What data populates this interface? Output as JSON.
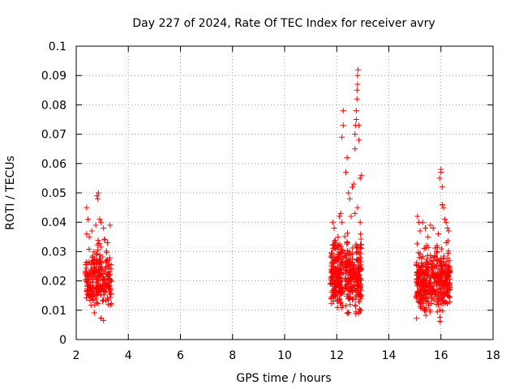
{
  "colors": {
    "series": "#ff0000",
    "grid": "#a0a0a0",
    "axis": "#000000"
  },
  "chart_data": {
    "type": "scatter",
    "title": "Day 227 of 2024, Rate Of TEC Index for receiver avry",
    "xlabel": "GPS time / hours",
    "ylabel": "ROTI / TECUs",
    "xlim": [
      2,
      18
    ],
    "ylim": [
      0,
      0.1
    ],
    "grid": true,
    "legend": "none",
    "marker": "+",
    "xticks": [
      2,
      4,
      6,
      8,
      10,
      12,
      14,
      16,
      18
    ],
    "xtick_labels": [
      "2",
      "4",
      "6",
      "8",
      "10",
      "12",
      "14",
      "16",
      "18"
    ],
    "yticks": [
      0,
      0.01,
      0.02,
      0.03,
      0.04,
      0.05,
      0.06,
      0.07,
      0.08,
      0.09,
      0.1
    ],
    "ytick_labels": [
      "0",
      "0.01",
      "0.02",
      "0.03",
      "0.04",
      "0.05",
      "0.06",
      "0.07",
      "0.08",
      "0.09",
      "0.1"
    ],
    "series": [
      {
        "name": "ROTI",
        "clusters": [
          {
            "x_range": [
              2.35,
              3.35
            ],
            "y_range": [
              0.005,
              0.036
            ],
            "count": 260
          },
          {
            "x_range": [
              11.75,
              12.25
            ],
            "y_range": [
              0.007,
              0.038
            ],
            "count": 200
          },
          {
            "x_range": [
              12.3,
              12.95
            ],
            "y_range": [
              0.005,
              0.04
            ],
            "count": 230
          },
          {
            "x_range": [
              15.05,
              15.75
            ],
            "y_range": [
              0.005,
              0.035
            ],
            "count": 220
          },
          {
            "x_range": [
              15.75,
              16.35
            ],
            "y_range": [
              0.005,
              0.035
            ],
            "count": 200
          }
        ],
        "points": [
          [
            2.4,
            0.045
          ],
          [
            2.45,
            0.041
          ],
          [
            2.4,
            0.036
          ],
          [
            2.5,
            0.035
          ],
          [
            2.6,
            0.037
          ],
          [
            2.75,
            0.039
          ],
          [
            2.8,
            0.049
          ],
          [
            2.85,
            0.05
          ],
          [
            2.82,
            0.048
          ],
          [
            2.9,
            0.041
          ],
          [
            2.95,
            0.04
          ],
          [
            3.05,
            0.038
          ],
          [
            3.2,
            0.033
          ],
          [
            3.3,
            0.039
          ],
          [
            3.1,
            0.034
          ],
          [
            11.85,
            0.04
          ],
          [
            11.9,
            0.038
          ],
          [
            11.95,
            0.033
          ],
          [
            12.05,
            0.035
          ],
          [
            12.1,
            0.042
          ],
          [
            12.15,
            0.043
          ],
          [
            12.2,
            0.04
          ],
          [
            12.2,
            0.069
          ],
          [
            12.25,
            0.073
          ],
          [
            12.25,
            0.078
          ],
          [
            12.35,
            0.057
          ],
          [
            12.4,
            0.062
          ],
          [
            12.45,
            0.05
          ],
          [
            12.5,
            0.048
          ],
          [
            12.55,
            0.042
          ],
          [
            12.6,
            0.052
          ],
          [
            12.65,
            0.053
          ],
          [
            12.7,
            0.065
          ],
          [
            12.7,
            0.07
          ],
          [
            12.72,
            0.073
          ],
          [
            12.75,
            0.075
          ],
          [
            12.75,
            0.078
          ],
          [
            12.78,
            0.082
          ],
          [
            12.78,
            0.085
          ],
          [
            12.8,
            0.087
          ],
          [
            12.8,
            0.09
          ],
          [
            12.82,
            0.092
          ],
          [
            12.85,
            0.068
          ],
          [
            12.85,
            0.073
          ],
          [
            12.9,
            0.055
          ],
          [
            12.95,
            0.056
          ],
          [
            12.7,
            0.043
          ],
          [
            12.8,
            0.045
          ],
          [
            12.9,
            0.04
          ],
          [
            15.1,
            0.042
          ],
          [
            15.15,
            0.04
          ],
          [
            15.2,
            0.037
          ],
          [
            15.3,
            0.04
          ],
          [
            15.4,
            0.038
          ],
          [
            15.5,
            0.035
          ],
          [
            15.6,
            0.039
          ],
          [
            15.7,
            0.038
          ],
          [
            15.85,
            0.032
          ],
          [
            15.9,
            0.036
          ],
          [
            15.95,
            0.055
          ],
          [
            16.0,
            0.058
          ],
          [
            16.0,
            0.057
          ],
          [
            16.05,
            0.052
          ],
          [
            16.05,
            0.046
          ],
          [
            16.1,
            0.045
          ],
          [
            16.15,
            0.041
          ],
          [
            16.2,
            0.04
          ],
          [
            16.25,
            0.038
          ],
          [
            16.3,
            0.037
          ],
          [
            16.2,
            0.033
          ]
        ]
      }
    ]
  }
}
